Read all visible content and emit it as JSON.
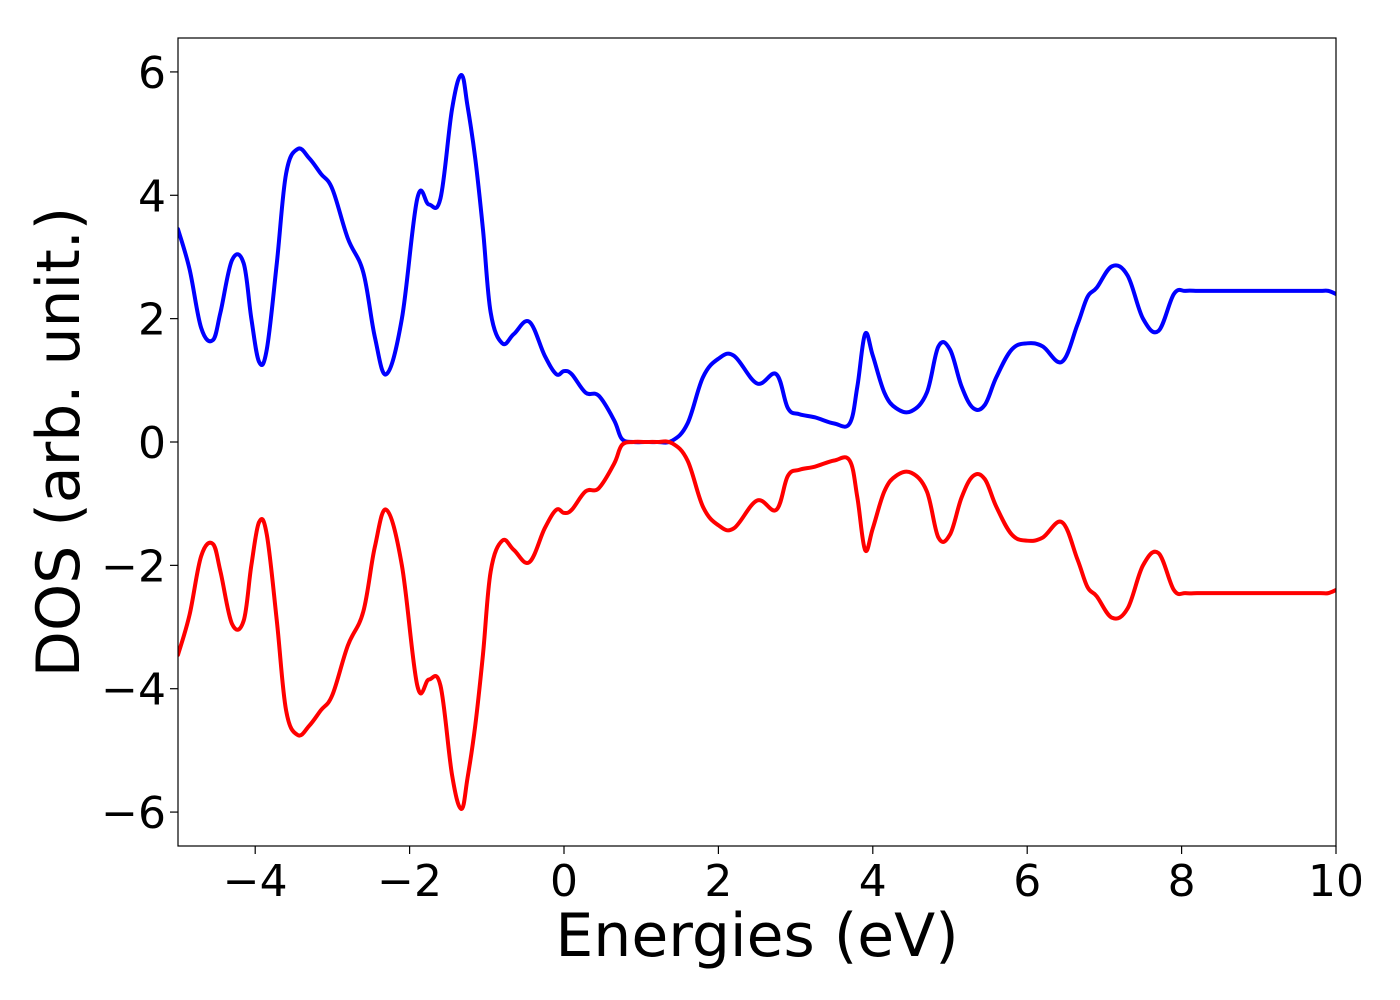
{
  "chart_data": {
    "type": "line",
    "title": "",
    "xlabel": "Energies (eV)",
    "ylabel": "DOS (arb. unit.)",
    "xlim": [
      -5,
      10
    ],
    "ylim": [
      -6.55,
      6.55
    ],
    "grid": false,
    "legend": "none",
    "x_ticks": [
      -4,
      -2,
      0,
      2,
      4,
      6,
      8,
      10
    ],
    "x_tick_labels": [
      "−4",
      "−2",
      "0",
      "2",
      "4",
      "6",
      "8",
      "10"
    ],
    "y_ticks": [
      -6,
      -4,
      -2,
      0,
      2,
      4,
      6
    ],
    "y_tick_labels": [
      "−6",
      "−4",
      "−2",
      "0",
      "2",
      "4",
      "6"
    ],
    "series": [
      {
        "color": "#0000ff",
        "x": [
          -5.0,
          -4.85,
          -4.7,
          -4.55,
          -4.45,
          -4.3,
          -4.15,
          -4.05,
          -3.95,
          -3.85,
          -3.72,
          -3.6,
          -3.45,
          -3.3,
          -3.15,
          -3.0,
          -2.8,
          -2.6,
          -2.45,
          -2.3,
          -2.1,
          -1.9,
          -1.75,
          -1.6,
          -1.45,
          -1.33,
          -1.25,
          -1.15,
          -1.05,
          -0.95,
          -0.8,
          -0.65,
          -0.45,
          -0.25,
          -0.1,
          0.0,
          0.1,
          0.28,
          0.45,
          0.65,
          0.75,
          0.9,
          1.05,
          1.2,
          1.4,
          1.6,
          1.8,
          2.0,
          2.2,
          2.5,
          2.75,
          2.9,
          3.05,
          3.25,
          3.5,
          3.7,
          3.8,
          3.9,
          4.0,
          4.15,
          4.3,
          4.5,
          4.7,
          4.85,
          5.0,
          5.15,
          5.3,
          5.45,
          5.6,
          5.8,
          6.0,
          6.2,
          6.45,
          6.65,
          6.78,
          6.9,
          7.1,
          7.3,
          7.5,
          7.7,
          7.9,
          8.05,
          8.2,
          8.3,
          8.45,
          8.6,
          8.75,
          8.9,
          9.05,
          9.15,
          9.3,
          9.45,
          9.6,
          9.8,
          9.9,
          10.0
        ],
        "y": [
          3.45,
          2.8,
          1.85,
          1.65,
          2.1,
          2.95,
          2.9,
          2.0,
          1.3,
          1.5,
          2.9,
          4.35,
          4.75,
          4.6,
          4.35,
          4.1,
          3.3,
          2.75,
          1.7,
          1.1,
          2.0,
          3.95,
          3.85,
          3.95,
          5.4,
          5.95,
          5.45,
          4.6,
          3.45,
          2.1,
          1.6,
          1.75,
          1.95,
          1.4,
          1.1,
          1.15,
          1.1,
          0.8,
          0.75,
          0.35,
          0.05,
          0.0,
          0.0,
          0.0,
          0.02,
          0.3,
          1.05,
          1.35,
          1.4,
          0.95,
          1.1,
          0.55,
          0.45,
          0.4,
          0.3,
          0.3,
          0.9,
          1.75,
          1.4,
          0.8,
          0.55,
          0.5,
          0.8,
          1.55,
          1.5,
          0.9,
          0.55,
          0.6,
          1.05,
          1.5,
          1.6,
          1.55,
          1.3,
          1.9,
          2.35,
          2.5,
          2.85,
          2.7,
          2.0,
          1.8,
          2.4,
          2.45,
          2.45,
          2.45,
          2.45,
          2.45,
          2.45,
          2.45,
          2.45,
          2.45,
          2.45,
          2.45,
          2.45,
          2.45,
          2.45,
          2.4
        ]
      },
      {
        "color": "#ff0000",
        "x": [
          -5.0,
          -4.85,
          -4.7,
          -4.55,
          -4.45,
          -4.3,
          -4.15,
          -4.05,
          -3.95,
          -3.85,
          -3.72,
          -3.6,
          -3.45,
          -3.3,
          -3.15,
          -3.0,
          -2.8,
          -2.6,
          -2.45,
          -2.3,
          -2.1,
          -1.9,
          -1.75,
          -1.6,
          -1.45,
          -1.33,
          -1.25,
          -1.15,
          -1.05,
          -0.95,
          -0.8,
          -0.65,
          -0.45,
          -0.25,
          -0.1,
          0.0,
          0.1,
          0.28,
          0.45,
          0.65,
          0.75,
          0.9,
          1.05,
          1.2,
          1.4,
          1.6,
          1.8,
          2.0,
          2.2,
          2.5,
          2.75,
          2.9,
          3.05,
          3.25,
          3.5,
          3.7,
          3.8,
          3.9,
          4.0,
          4.15,
          4.3,
          4.5,
          4.7,
          4.85,
          5.0,
          5.15,
          5.3,
          5.45,
          5.6,
          5.8,
          6.0,
          6.2,
          6.45,
          6.65,
          6.78,
          6.9,
          7.1,
          7.3,
          7.5,
          7.7,
          7.9,
          8.05,
          8.2,
          8.3,
          8.45,
          8.6,
          8.75,
          8.9,
          9.05,
          9.15,
          9.3,
          9.45,
          9.6,
          9.8,
          9.9,
          10.0
        ],
        "y": [
          -3.45,
          -2.8,
          -1.85,
          -1.65,
          -2.1,
          -2.95,
          -2.9,
          -2.0,
          -1.3,
          -1.5,
          -2.9,
          -4.35,
          -4.75,
          -4.6,
          -4.35,
          -4.1,
          -3.3,
          -2.75,
          -1.7,
          -1.1,
          -2.0,
          -3.95,
          -3.85,
          -3.95,
          -5.4,
          -5.95,
          -5.45,
          -4.6,
          -3.45,
          -2.1,
          -1.6,
          -1.75,
          -1.95,
          -1.4,
          -1.1,
          -1.15,
          -1.1,
          -0.8,
          -0.75,
          -0.35,
          -0.05,
          0.0,
          0.0,
          0.0,
          -0.02,
          -0.3,
          -1.05,
          -1.35,
          -1.4,
          -0.95,
          -1.1,
          -0.55,
          -0.45,
          -0.4,
          -0.3,
          -0.3,
          -0.9,
          -1.75,
          -1.4,
          -0.8,
          -0.55,
          -0.5,
          -0.8,
          -1.55,
          -1.5,
          -0.9,
          -0.55,
          -0.6,
          -1.05,
          -1.5,
          -1.6,
          -1.55,
          -1.3,
          -1.9,
          -2.35,
          -2.5,
          -2.85,
          -2.7,
          -2.0,
          -1.8,
          -2.4,
          -2.45,
          -2.45,
          -2.45,
          -2.45,
          -2.45,
          -2.45,
          -2.45,
          -2.45,
          -2.45,
          -2.45,
          -2.45,
          -2.45,
          -2.45,
          -2.45,
          -2.4
        ]
      }
    ]
  }
}
